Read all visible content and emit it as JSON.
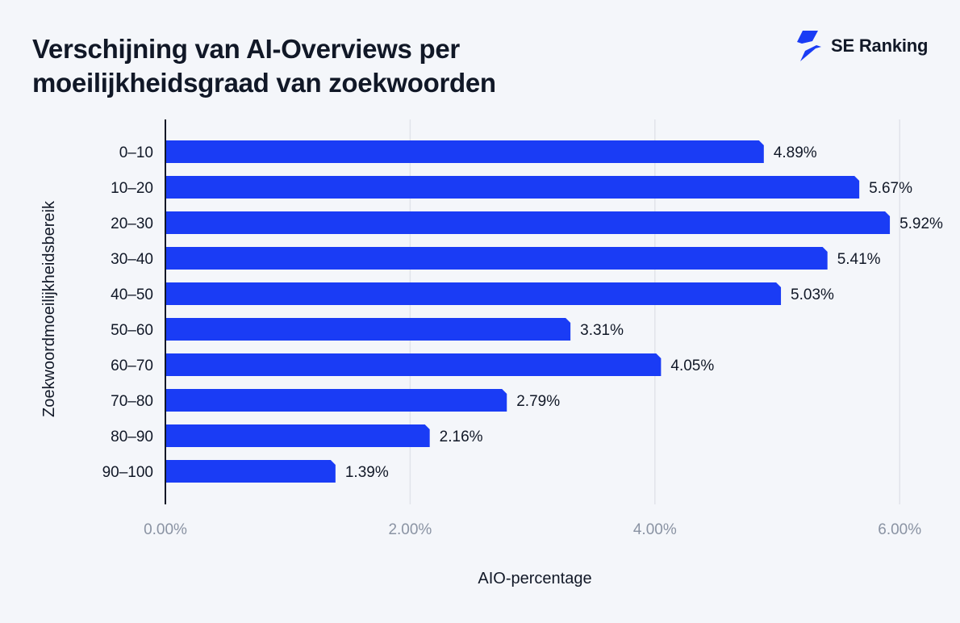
{
  "header": {
    "title_line1": "Verschijning van AI-Overviews per",
    "title_line2": "moeilijkheidsgraad van zoekwoorden",
    "brand": "SE Ranking",
    "brand_icon": "se-ranking-logo-icon"
  },
  "colors": {
    "bar": "#1a3cf5",
    "grid": "#e1e4ea",
    "axis": "#111827"
  },
  "chart_data": {
    "type": "bar",
    "orientation": "horizontal",
    "title": "Verschijning van AI-Overviews per moeilijkheidsgraad van zoekwoorden",
    "xlabel": "AIO-percentage",
    "ylabel": "Zoekwoordmoeilijkheidsbereik",
    "categories": [
      "0–10",
      "10–20",
      "20–30",
      "30–40",
      "40–50",
      "50–60",
      "60–70",
      "70–80",
      "80–90",
      "90–100"
    ],
    "values": [
      4.89,
      5.67,
      5.92,
      5.41,
      5.03,
      3.31,
      4.05,
      2.79,
      2.16,
      1.39
    ],
    "data_labels": [
      "4.89%",
      "5.67%",
      "5.92%",
      "5.41%",
      "5.03%",
      "3.31%",
      "4.05%",
      "2.79%",
      "2.16%",
      "1.39%"
    ],
    "xlim": [
      0,
      6.6
    ],
    "xticks": [
      0,
      2,
      4,
      6
    ],
    "xtick_labels": [
      "0.00%",
      "2.00%",
      "4.00%",
      "6.00%"
    ],
    "grid": true,
    "legend": "none"
  }
}
